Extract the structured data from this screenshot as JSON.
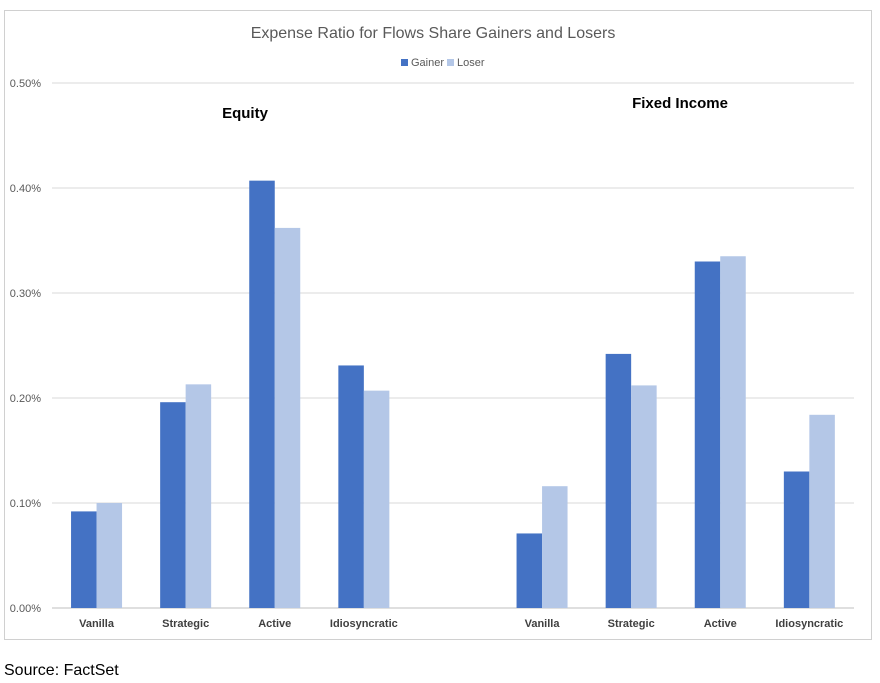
{
  "chart_data": {
    "type": "bar",
    "title": "Expense Ratio for Flows Share Gainers and Losers",
    "xlabel": "",
    "ylabel": "",
    "ylim": [
      0,
      0.5
    ],
    "ytick_values": [
      0,
      0.1,
      0.2,
      0.3,
      0.4,
      0.5
    ],
    "ytick_labels": [
      "0.00%",
      "0.10%",
      "0.20%",
      "0.30%",
      "0.40%",
      "0.50%"
    ],
    "grid": true,
    "legend": "top",
    "groups": [
      {
        "label": "Equity",
        "categories": [
          "Vanilla",
          "Strategic",
          "Active",
          "Idiosyncratic"
        ]
      },
      {
        "label": "Fixed Income",
        "categories": [
          "Vanilla",
          "Strategic",
          "Active",
          "Idiosyncratic"
        ]
      }
    ],
    "series": [
      {
        "name": "Gainer",
        "color": "#4472c4",
        "values": [
          [
            0.092,
            0.196,
            0.407,
            0.231
          ],
          [
            0.071,
            0.242,
            0.33,
            0.13
          ]
        ]
      },
      {
        "name": "Loser",
        "color": "#b4c7e7",
        "values": [
          [
            0.1,
            0.213,
            0.362,
            0.207
          ],
          [
            0.116,
            0.212,
            0.335,
            0.184
          ]
        ]
      }
    ]
  },
  "source": "Source: FactSet"
}
